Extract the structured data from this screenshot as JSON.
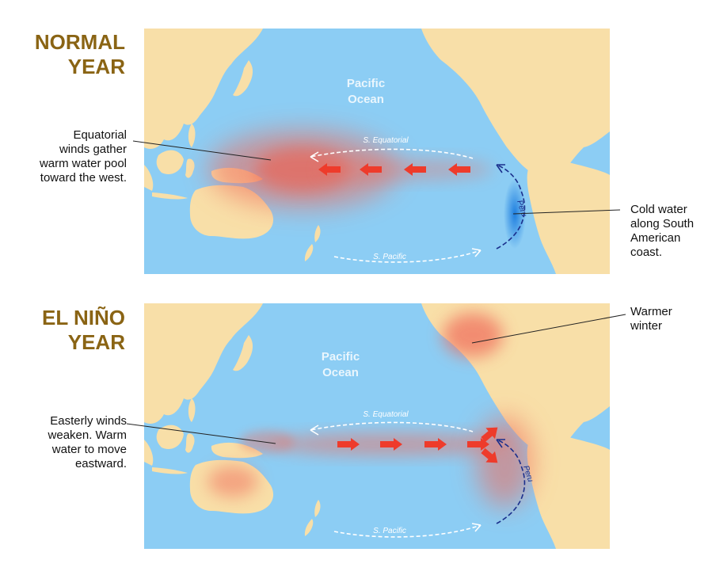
{
  "colors": {
    "heading": "#8a6414",
    "ocean": "#8ccdf4",
    "land": "#f8dfa8",
    "ocean_label": "#eaf6fd",
    "warm_pool": "#f06a5a",
    "arrow": "#ee3b2b",
    "cold": "#1f7fe0",
    "peru_current": "#1a2f8c",
    "current_line": "#ffffff"
  },
  "normal": {
    "heading_line1": "NORMAL",
    "heading_line2": "YEAR",
    "ocean_line1": "Pacific",
    "ocean_line2": "Ocean",
    "equatorial_label": "S. Equatorial",
    "pacific_label": "S. Pacific",
    "peru_label": "Peru",
    "left_callout": [
      "Equatorial",
      "winds gather",
      "warm water pool",
      "toward the west."
    ],
    "right_callout": [
      "Cold water",
      "along South",
      "American",
      "coast."
    ],
    "arrow_icons": [
      "left-arrow-icon",
      "left-arrow-icon",
      "left-arrow-icon",
      "left-arrow-icon"
    ]
  },
  "elnino": {
    "heading_line1": "EL NIÑO",
    "heading_line2": "YEAR",
    "ocean_line1": "Pacific",
    "ocean_line2": "Ocean",
    "equatorial_label": "S. Equatorial",
    "pacific_label": "S. Pacific",
    "peru_label": "Peru",
    "left_callout": [
      "Easterly winds",
      "weaken. Warm",
      "water to move",
      "eastward."
    ],
    "right_callout": [
      "Warmer",
      "winter"
    ],
    "arrow_icons": [
      "right-arrow-icon",
      "right-arrow-icon",
      "right-arrow-icon",
      "right-arrow-icon",
      "diverging-up-arrow-icon",
      "diverging-down-arrow-icon"
    ]
  }
}
